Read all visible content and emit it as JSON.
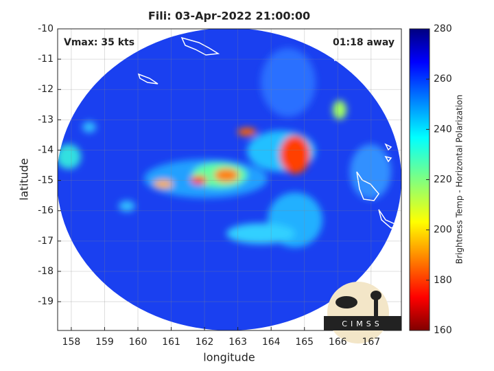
{
  "chart_data": {
    "type": "map",
    "title": "Fili: 03-Apr-2022 21:00:00",
    "annotations": {
      "intensity": "Vmax: 35 kts",
      "time_offset": "01:18 away"
    },
    "x_label": "longitude",
    "y_label": "latitude",
    "xlim": [
      157.59,
      167.91
    ],
    "xticks": [
      158,
      159,
      160,
      161,
      162,
      163,
      164,
      165,
      166,
      167
    ],
    "ylim": [
      -19.95,
      -10
    ],
    "yticks": [
      -10,
      -11,
      -12,
      -13,
      -14,
      -15,
      -16,
      -17,
      -18,
      -19
    ],
    "grid": true,
    "colorbar": {
      "label": "Brightness Temp - Horizontal Polarization",
      "lim": [
        160,
        280
      ],
      "ticks": [
        160,
        180,
        200,
        220,
        240,
        260,
        280
      ]
    },
    "logo_text": "CIMSS"
  }
}
